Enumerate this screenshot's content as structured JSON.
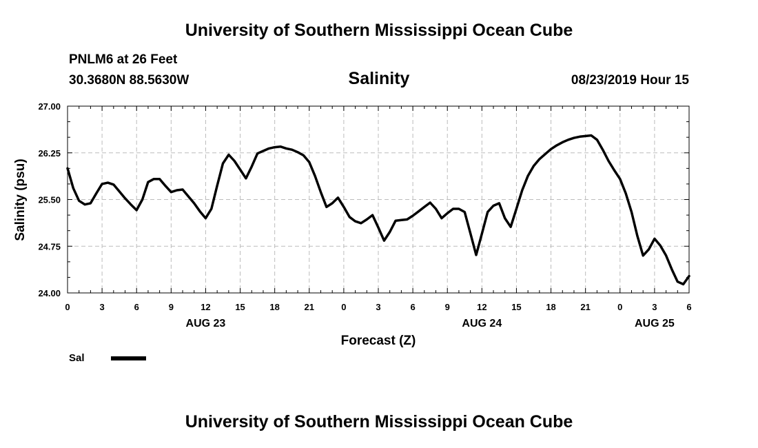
{
  "header": {
    "title": "University of Southern Mississippi Ocean Cube",
    "station": "PNLM6 at 26 Feet",
    "coords": "30.3680N 88.5630W",
    "timestamp": "08/23/2019 Hour 15"
  },
  "footer": {
    "title": "University of Southern Mississippi Ocean Cube"
  },
  "colors": {
    "line": "#000000",
    "grid": "#bbbbbb",
    "background": "#ffffff"
  },
  "chart_data": {
    "type": "line",
    "title": "Salinity",
    "xlabel": "Forecast (Z)",
    "ylabel": "Salinity (psu)",
    "ylim": [
      24.0,
      27.0
    ],
    "xlim": [
      0,
      54
    ],
    "y_ticks": [
      "24.00",
      "24.75",
      "25.50",
      "26.25",
      "27.00"
    ],
    "x_ticks": [
      {
        "x": 0,
        "label": "0"
      },
      {
        "x": 3,
        "label": "3"
      },
      {
        "x": 6,
        "label": "6"
      },
      {
        "x": 9,
        "label": "9"
      },
      {
        "x": 12,
        "label": "12"
      },
      {
        "x": 15,
        "label": "15"
      },
      {
        "x": 18,
        "label": "18"
      },
      {
        "x": 21,
        "label": "21"
      },
      {
        "x": 24,
        "label": "0"
      },
      {
        "x": 27,
        "label": "3"
      },
      {
        "x": 30,
        "label": "6"
      },
      {
        "x": 33,
        "label": "9"
      },
      {
        "x": 36,
        "label": "12"
      },
      {
        "x": 39,
        "label": "15"
      },
      {
        "x": 42,
        "label": "18"
      },
      {
        "x": 45,
        "label": "21"
      },
      {
        "x": 48,
        "label": "0"
      },
      {
        "x": 51,
        "label": "3"
      },
      {
        "x": 54,
        "label": "6"
      }
    ],
    "day_labels": [
      {
        "x": 12,
        "label": "AUG 23"
      },
      {
        "x": 36,
        "label": "AUG 24"
      },
      {
        "x": 51,
        "label": "AUG 25"
      }
    ],
    "series": [
      {
        "name": "Sal",
        "x": [
          0,
          0.5,
          1,
          1.5,
          2,
          2.5,
          3,
          3.5,
          4,
          4.5,
          5,
          5.5,
          6,
          6.5,
          7,
          7.5,
          8,
          8.5,
          9,
          9.5,
          10,
          10.5,
          11,
          11.5,
          12,
          12.5,
          13,
          13.5,
          14,
          14.5,
          15,
          15.5,
          16,
          16.5,
          17,
          17.5,
          18,
          18.5,
          19,
          19.5,
          20,
          20.5,
          21,
          21.5,
          22,
          22.5,
          23,
          23.5,
          24,
          24.5,
          25,
          25.5,
          26,
          26.5,
          27,
          27.5,
          28,
          28.5,
          29,
          29.5,
          30,
          30.5,
          31,
          31.5,
          32,
          32.5,
          33,
          33.5,
          34,
          34.5,
          35,
          35.5,
          36,
          36.5,
          37,
          37.5,
          38,
          38.5,
          39,
          39.5,
          40,
          40.5,
          41,
          41.5,
          42,
          42.5,
          43,
          43.5,
          44,
          44.5,
          45,
          45.5,
          46,
          46.5,
          47,
          47.5,
          48,
          48.5,
          49,
          49.5,
          50,
          50.5,
          51,
          51.5,
          52,
          52.5,
          53,
          53.5,
          54
        ],
        "values": [
          26.0,
          25.68,
          25.48,
          25.42,
          25.44,
          25.6,
          25.75,
          25.77,
          25.74,
          25.63,
          25.52,
          25.42,
          25.33,
          25.5,
          25.78,
          25.83,
          25.83,
          25.72,
          25.62,
          25.65,
          25.66,
          25.55,
          25.44,
          25.31,
          25.2,
          25.35,
          25.72,
          26.08,
          26.22,
          26.12,
          25.98,
          25.84,
          26.03,
          26.24,
          26.28,
          26.32,
          26.34,
          26.35,
          26.32,
          26.3,
          26.26,
          26.21,
          26.1,
          25.88,
          25.62,
          25.38,
          25.44,
          25.53,
          25.38,
          25.22,
          25.15,
          25.12,
          25.18,
          25.25,
          25.05,
          24.84,
          24.98,
          25.16,
          25.17,
          25.18,
          25.24,
          25.31,
          25.38,
          25.45,
          25.35,
          25.2,
          25.28,
          25.35,
          25.35,
          25.3,
          24.96,
          24.61,
          24.95,
          25.3,
          25.4,
          25.44,
          25.2,
          25.06,
          25.35,
          25.65,
          25.88,
          26.04,
          26.15,
          26.23,
          26.31,
          26.37,
          26.42,
          26.46,
          26.49,
          26.51,
          26.52,
          26.53,
          26.46,
          26.3,
          26.12,
          25.97,
          25.83,
          25.6,
          25.3,
          24.92,
          24.6,
          24.7,
          24.87,
          24.76,
          24.6,
          24.38,
          24.18,
          24.14,
          24.27
        ]
      }
    ],
    "legend": [
      {
        "name": "Sal",
        "color": "#000000"
      }
    ]
  }
}
